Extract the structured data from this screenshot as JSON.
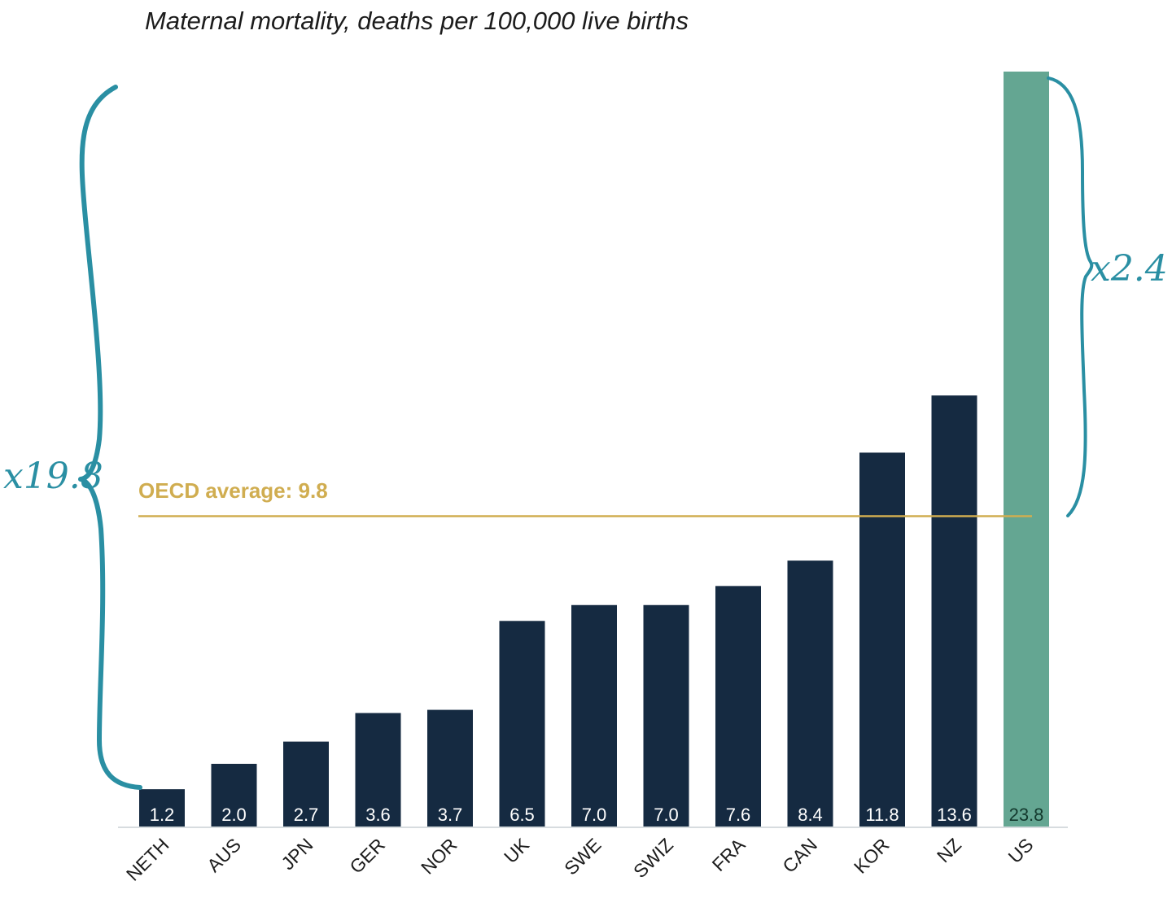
{
  "chart_data": {
    "type": "bar",
    "title": "Maternal mortality, deaths per 100,000 live births",
    "categories": [
      "NETH",
      "AUS",
      "JPN",
      "GER",
      "NOR",
      "UK",
      "SWE",
      "SWIZ",
      "FRA",
      "CAN",
      "KOR",
      "NZ",
      "US"
    ],
    "values": [
      1.2,
      2.0,
      2.7,
      3.6,
      3.7,
      6.5,
      7.0,
      7.0,
      7.6,
      8.4,
      11.8,
      13.6,
      23.8
    ],
    "value_labels": [
      "1.2",
      "2.0",
      "2.7",
      "3.6",
      "3.7",
      "6.5",
      "7.0",
      "7.0",
      "7.6",
      "8.4",
      "11.8",
      "13.6",
      "23.8"
    ],
    "ylim": [
      0,
      23.8
    ],
    "grid": false,
    "reference_line": {
      "label": "OECD average: 9.8",
      "value": 9.8
    },
    "annotations": [
      {
        "label": "x19.8",
        "from_category": "NETH",
        "to_category": "US",
        "side": "left"
      },
      {
        "label": "x2.4",
        "from_category": "OECD average",
        "to_category": "US",
        "side": "right"
      }
    ]
  },
  "colors": {
    "bar": "#152a41",
    "highlight_bar": "#64a692",
    "bar_value_text": "#ffffff",
    "highlight_value_text": "#13392d",
    "average_line": "#d0ad50",
    "brace": "#2a8fa3",
    "axis": "#d7dcdf"
  },
  "highlight_category": "US"
}
